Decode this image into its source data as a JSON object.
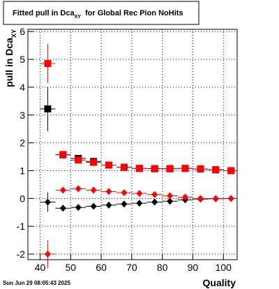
{
  "chart_data": {
    "type": "scatter",
    "title": "Fitted pull in Dca",
    "title_subscript": "XY",
    "title_suffix": "for Global Rec Pion NoHits",
    "y_label": "pull in Dca",
    "y_label_subscript": "XY",
    "x_label": "Quality",
    "timestamp": "Sun Jun 29 08:05:43 2025",
    "x": [
      42.5,
      47.5,
      52.5,
      57.5,
      62.5,
      67.5,
      72.5,
      77.5,
      82.5,
      87.5,
      92.5,
      97.5,
      102.5
    ],
    "series": [
      {
        "color": "#000000",
        "marker": "square",
        "values": [
          3.22,
          1.57,
          1.44,
          1.33,
          1.2,
          1.12,
          1.08,
          1.07,
          1.07,
          1.08,
          1.06,
          1.03,
          1.0
        ],
        "errors": [
          0.8,
          0.05,
          0.05,
          0.05,
          0.04,
          0.03,
          0.03,
          0.03,
          0.03,
          0.03,
          0.03,
          0.03,
          0.03
        ]
      },
      {
        "color": "#ff0000",
        "marker": "square",
        "values": [
          4.85,
          1.58,
          1.38,
          1.3,
          1.2,
          1.12,
          1.08,
          1.07,
          1.07,
          1.08,
          1.06,
          1.03,
          1.0
        ],
        "errors": [
          0.7,
          0.05,
          0.05,
          0.05,
          0.04,
          0.03,
          0.03,
          0.03,
          0.03,
          0.03,
          0.03,
          0.03,
          0.03
        ]
      },
      {
        "color": "#000000",
        "marker": "diamond",
        "values": [
          -0.13,
          -0.35,
          -0.32,
          -0.28,
          -0.24,
          -0.2,
          -0.17,
          -0.13,
          -0.1,
          -0.05,
          -0.02,
          -0.01,
          0.0
        ],
        "errors": [
          0.35,
          0.05,
          0.05,
          0.04,
          0.04,
          0.03,
          0.03,
          0.03,
          0.03,
          0.03,
          0.03,
          0.03,
          0.03
        ]
      },
      {
        "color": "#ff0000",
        "marker": "diamond",
        "values": [
          -2.0,
          0.3,
          0.35,
          0.3,
          0.25,
          0.21,
          0.18,
          0.14,
          0.1,
          0.05,
          0.0,
          0.0,
          0.0
        ],
        "errors": [
          0.5,
          0.05,
          0.05,
          0.04,
          0.04,
          0.03,
          0.03,
          0.03,
          0.03,
          0.03,
          0.03,
          0.03,
          0.03
        ]
      }
    ],
    "xlim": [
      36,
      104.5
    ],
    "ylim": [
      -2.2,
      6.08
    ],
    "xticks": [
      40,
      50,
      60,
      70,
      80,
      90,
      100
    ],
    "yticks": [
      -2,
      -1,
      0,
      1,
      2,
      3,
      4,
      5,
      6
    ],
    "grid": true
  }
}
